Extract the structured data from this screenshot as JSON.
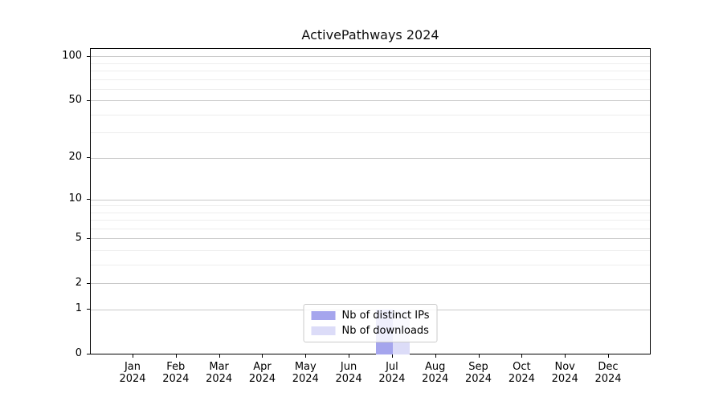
{
  "chart_data": {
    "type": "bar",
    "title": "ActivePathways 2024",
    "categories": [
      "Jan",
      "Feb",
      "Mar",
      "Apr",
      "May",
      "Jun",
      "Jul",
      "Aug",
      "Sep",
      "Oct",
      "Nov",
      "Dec"
    ],
    "x_tick_year": "2024",
    "series": [
      {
        "name": "Nb of distinct IPs",
        "color": "#a5a5ed",
        "values": [
          0,
          0,
          0,
          0,
          0,
          0,
          1,
          0,
          0,
          0,
          0,
          0
        ]
      },
      {
        "name": "Nb of downloads",
        "color": "#dcdcf8",
        "values": [
          0,
          0,
          0,
          0,
          0,
          0,
          1,
          0,
          0,
          0,
          0,
          0
        ]
      }
    ],
    "yscale": "log1p",
    "ylim": [
      0,
      113
    ],
    "y_major_ticks": [
      0,
      1,
      2,
      5,
      10,
      20,
      50,
      100
    ],
    "y_minor_ticks": [
      3,
      4,
      6,
      7,
      8,
      9,
      30,
      40,
      60,
      70,
      80,
      90
    ],
    "grid": "horizontal-only",
    "legend_position": "lower-center"
  },
  "colors": {
    "background": "#ffffff",
    "axis": "#000000",
    "grid_major": "#c9c9c9",
    "grid_minor": "#ededed",
    "legend_border": "#cccccc",
    "text": "#000000"
  }
}
